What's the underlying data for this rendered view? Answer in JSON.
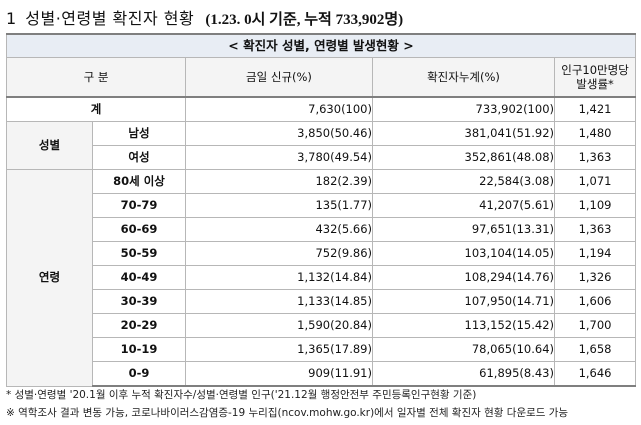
{
  "heading": {
    "number": "1",
    "title": "성별·연령별 확진자 현황",
    "subtitle": "(1.23. 0시 기준, 누적 733,902명)"
  },
  "table": {
    "caption": "< 확진자 성별, 연령별 발생현황 >",
    "headers": {
      "category": "구 분",
      "daily": "금일 신규(%)",
      "cumulative": "확진자누계(%)",
      "rate": "인구10만명당 발생률*"
    },
    "total": {
      "label": "계",
      "daily": "7,630(100)",
      "cumulative": "733,902(100)",
      "rate": "1,421"
    },
    "sex_group": "성별",
    "sex_rows": [
      {
        "label": "남성",
        "daily": "3,850(50.46)",
        "cumulative": "381,041(51.92)",
        "rate": "1,480"
      },
      {
        "label": "여성",
        "daily": "3,780(49.54)",
        "cumulative": "352,861(48.08)",
        "rate": "1,363"
      }
    ],
    "age_group": "연령",
    "age_rows": [
      {
        "label": "80세 이상",
        "daily": "182(2.39)",
        "cumulative": "22,584(3.08)",
        "rate": "1,071"
      },
      {
        "label": "70-79",
        "daily": "135(1.77)",
        "cumulative": "41,207(5.61)",
        "rate": "1,109"
      },
      {
        "label": "60-69",
        "daily": "432(5.66)",
        "cumulative": "97,651(13.31)",
        "rate": "1,363"
      },
      {
        "label": "50-59",
        "daily": "752(9.86)",
        "cumulative": "103,104(14.05)",
        "rate": "1,194"
      },
      {
        "label": "40-49",
        "daily": "1,132(14.84)",
        "cumulative": "108,294(14.76)",
        "rate": "1,326"
      },
      {
        "label": "30-39",
        "daily": "1,133(14.85)",
        "cumulative": "107,950(14.71)",
        "rate": "1,606"
      },
      {
        "label": "20-29",
        "daily": "1,590(20.84)",
        "cumulative": "113,152(15.42)",
        "rate": "1,700"
      },
      {
        "label": "10-19",
        "daily": "1,365(17.89)",
        "cumulative": "78,065(10.64)",
        "rate": "1,658"
      },
      {
        "label": "0-9",
        "daily": "909(11.91)",
        "cumulative": "61,895(8.43)",
        "rate": "1,646"
      }
    ]
  },
  "notes": [
    "* 성별·연령별 '20.1월 이후 누적 확진자수/성별·연령별 인구('21.12월 행정안전부 주민등록인구현황 기준)",
    "※ 역학조사 결과 변동 가능, 코로나바이러스감염증-19 누리집(ncov.mohw.go.kr)에서 일자별 전체 확진자 현황 다운로드 가능"
  ]
}
